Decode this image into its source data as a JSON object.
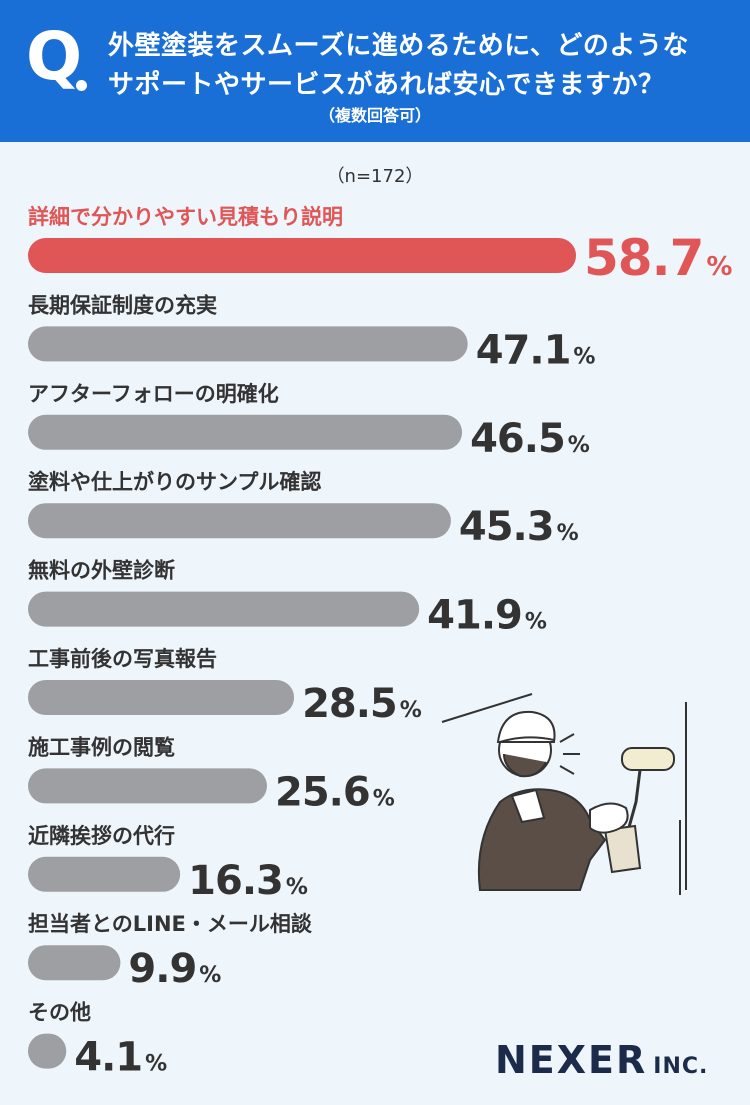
{
  "header": {
    "q_mark": "Q",
    "line1": "外壁塗装をスムーズに進めるために、どのような",
    "line2": "サポートやサービスがあれば安心できますか？",
    "note": "（複数回答可）"
  },
  "sample": "（n=172）",
  "colors": {
    "header_bg": "#1a6fd6",
    "highlight": "#e05656",
    "bar": "#9d9fa3",
    "background": "#eef5fb"
  },
  "chart_data": {
    "type": "bar",
    "orientation": "horizontal",
    "unit": "%",
    "categories": [
      "詳細で分かりやすい見積もり説明",
      "長期保証制度の充実",
      "アフターフォローの明確化",
      "塗料や仕上がりのサンプル確認",
      "無料の外壁診断",
      "工事前後の写真報告",
      "施工事例の閲覧",
      "近隣挨拶の代行",
      "担当者とのLINE・メール相談",
      "その他"
    ],
    "values": [
      58.7,
      47.1,
      46.5,
      45.3,
      41.9,
      28.5,
      25.6,
      16.3,
      9.9,
      4.1
    ],
    "value_labels": [
      "58.7",
      "47.1",
      "46.5",
      "45.3",
      "41.9",
      "28.5",
      "25.6",
      "16.3",
      "9.9",
      "4.1"
    ],
    "highlight_index": 0
  },
  "logo": {
    "main": "NEXER",
    "suffix": "INC."
  },
  "illustration": "painter-with-roller"
}
